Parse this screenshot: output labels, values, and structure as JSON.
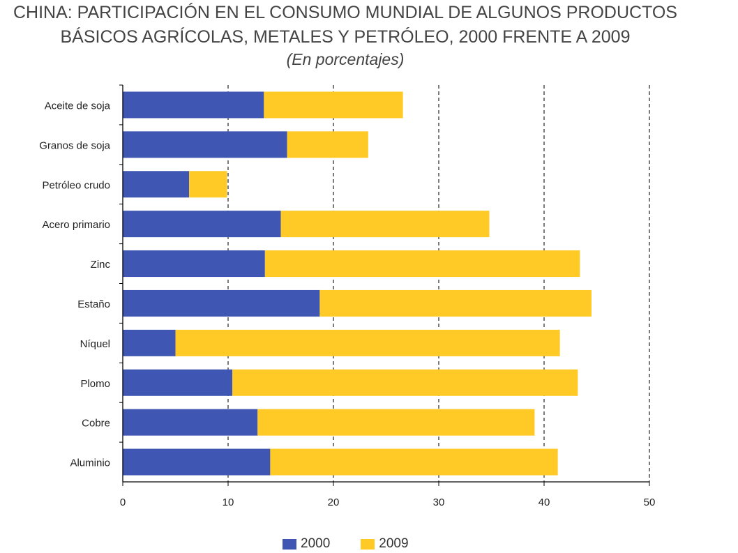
{
  "title_line1": "CHINA: PARTICIPACIÓN EN EL CONSUMO MUNDIAL DE ALGUNOS PRODUCTOS",
  "title_line2": "BÁSICOS AGRÍCOLAS, METALES Y PETRÓLEO, 2000 FRENTE A 2009",
  "subtitle": "(En porcentajes)",
  "colors": {
    "s2000": "#3F57B3",
    "s2009": "#FFC926",
    "axis": "#000000",
    "grid": "#222222"
  },
  "chart_data": {
    "type": "bar",
    "orientation": "horizontal",
    "stacked": true,
    "categories": [
      "Aceite de soja",
      "Granos de soja",
      "Petróleo crudo",
      "Acero primario",
      "Zinc",
      "Estaño",
      "Níquel",
      "Plomo",
      "Cobre",
      "Aluminio"
    ],
    "series": [
      {
        "name": "2000",
        "values": [
          13.4,
          15.6,
          6.3,
          15.0,
          13.5,
          18.7,
          5.0,
          10.4,
          12.8,
          14.0
        ]
      },
      {
        "name": "2009",
        "values": [
          13.2,
          7.7,
          3.6,
          19.8,
          29.9,
          25.8,
          36.5,
          32.8,
          26.3,
          27.3
        ]
      }
    ],
    "xlim": [
      0,
      50
    ],
    "xticks": [
      "0",
      "10",
      "20",
      "30",
      "40",
      "50"
    ],
    "grid": "vertical dashed",
    "legend_position": "bottom"
  }
}
